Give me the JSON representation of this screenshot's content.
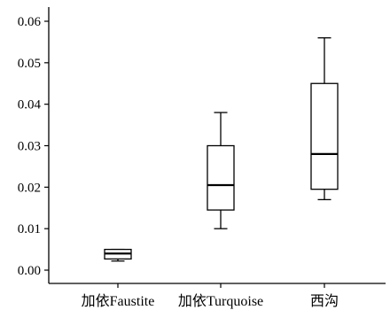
{
  "chart_data": {
    "type": "box",
    "title": "",
    "xlabel": "",
    "ylabel": "",
    "ylim": [
      -0.003,
      0.0635
    ],
    "yticks": [
      0.0,
      0.01,
      0.02,
      0.03,
      0.04,
      0.05,
      0.06
    ],
    "ytick_labels": [
      "0.00",
      "0.01",
      "0.02",
      "0.03",
      "0.04",
      "0.05",
      "0.06"
    ],
    "categories": [
      "加依Faustite",
      "加依Turquoise",
      "西沟"
    ],
    "boxes": [
      {
        "whisker_low": 0.0022,
        "q1": 0.0027,
        "median": 0.004,
        "q3": 0.005,
        "whisker_high": 0.005
      },
      {
        "whisker_low": 0.01,
        "q1": 0.0145,
        "median": 0.0205,
        "q3": 0.03,
        "whisker_high": 0.038
      },
      {
        "whisker_low": 0.017,
        "q1": 0.0195,
        "median": 0.028,
        "q3": 0.045,
        "whisker_high": 0.056
      }
    ],
    "grid": false,
    "legend": "none"
  }
}
